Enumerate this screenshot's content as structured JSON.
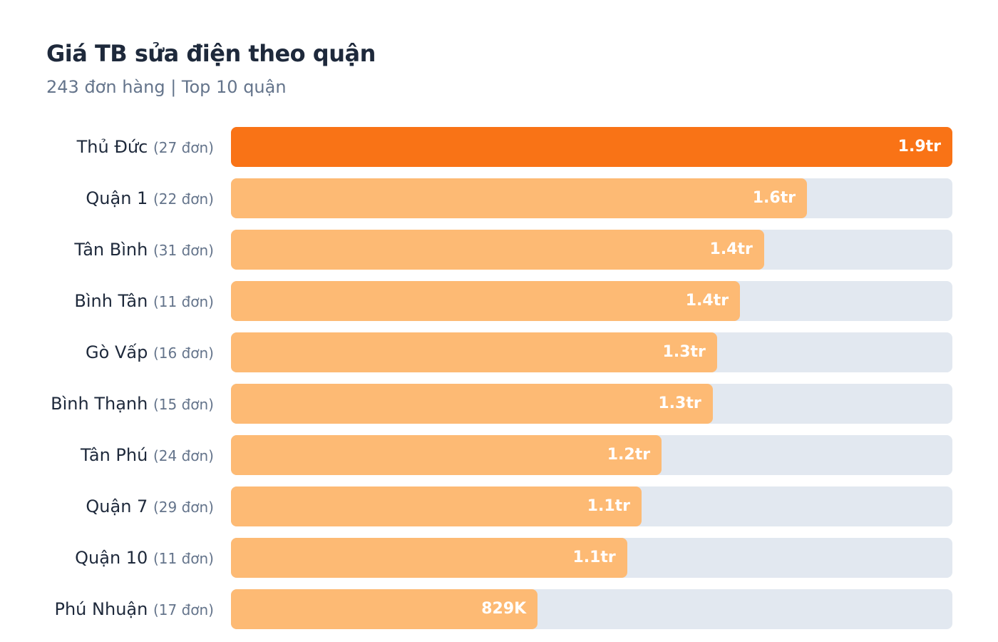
{
  "chart_data": {
    "type": "bar",
    "orientation": "horizontal",
    "title": "Giá TB sửa điện theo quận",
    "subtitle": "243 đơn hàng | Top 10 quận",
    "categories": [
      "Thủ Đức",
      "Quận 1",
      "Tân Bình",
      "Bình Tân",
      "Gò Vấp",
      "Bình Thạnh",
      "Tân Phú",
      "Quận 7",
      "Quận 10",
      "Phú Nhuận"
    ],
    "counts": [
      "(27 đơn)",
      "(22 đơn)",
      "(31 đơn)",
      "(11 đơn)",
      "(16 đơn)",
      "(15 đơn)",
      "(24 đơn)",
      "(29 đơn)",
      "(11 đơn)",
      "(17 đơn)"
    ],
    "values": [
      1950000,
      1557000,
      1441000,
      1376000,
      1314000,
      1302000,
      1164000,
      1110000,
      1071000,
      829000
    ],
    "value_labels": [
      "1.9tr",
      "1.6tr",
      "1.4tr",
      "1.4tr",
      "1.3tr",
      "1.3tr",
      "1.2tr",
      "1.1tr",
      "1.1tr",
      "829K"
    ],
    "unit": "VND",
    "grid": false,
    "colors": {
      "highlight": "#f97316",
      "bar": "#fdba74",
      "track": "#e2e8f0"
    }
  }
}
